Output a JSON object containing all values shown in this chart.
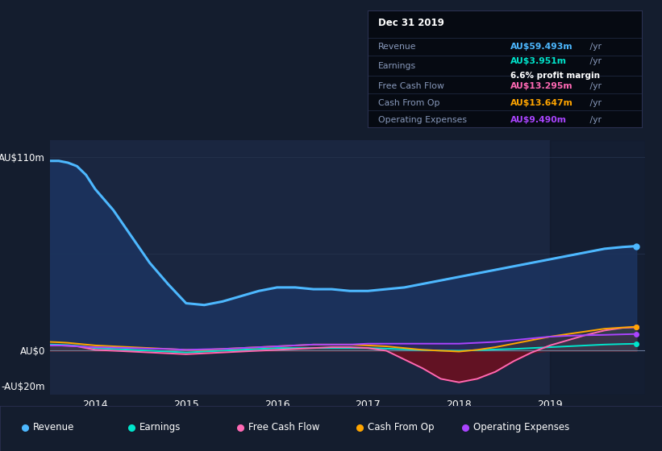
{
  "bg_color": "#141d2e",
  "plot_bg_color": "#1a2640",
  "grid_color": "#263550",
  "title": "Dec 31 2019",
  "info_box": {
    "Revenue": {
      "color": "#4db8ff"
    },
    "Earnings": {
      "color": "#00e5cc"
    },
    "Free Cash Flow": {
      "color": "#ff69b4"
    },
    "Cash From Op": {
      "color": "#ffa500"
    },
    "Operating Expenses": {
      "color": "#aa44ff"
    }
  },
  "years": [
    2013.5,
    2013.6,
    2013.7,
    2013.8,
    2013.9,
    2014.0,
    2014.2,
    2014.4,
    2014.6,
    2014.8,
    2015.0,
    2015.2,
    2015.4,
    2015.6,
    2015.8,
    2016.0,
    2016.2,
    2016.4,
    2016.6,
    2016.8,
    2017.0,
    2017.2,
    2017.4,
    2017.6,
    2017.8,
    2018.0,
    2018.2,
    2018.4,
    2018.6,
    2018.8,
    2019.0,
    2019.2,
    2019.4,
    2019.6,
    2019.8,
    2019.95
  ],
  "revenue": [
    108,
    108,
    107,
    105,
    100,
    92,
    80,
    65,
    50,
    38,
    27,
    26,
    28,
    31,
    34,
    36,
    36,
    35,
    35,
    34,
    34,
    35,
    36,
    38,
    40,
    42,
    44,
    46,
    48,
    50,
    52,
    54,
    56,
    58,
    59,
    59.5
  ],
  "earnings": [
    3.5,
    3.4,
    3.2,
    2.8,
    2.2,
    1.5,
    1.0,
    0.5,
    0.0,
    -0.5,
    -1.0,
    -0.5,
    0.0,
    0.5,
    1.0,
    1.5,
    1.5,
    1.5,
    1.5,
    1.5,
    1.5,
    1.2,
    0.8,
    0.4,
    0.1,
    0.0,
    0.3,
    0.7,
    1.0,
    1.5,
    2.0,
    2.5,
    3.0,
    3.5,
    3.8,
    3.951
  ],
  "free_cash_flow": [
    3.0,
    3.0,
    2.8,
    2.5,
    1.5,
    0.5,
    0.0,
    -0.5,
    -1.0,
    -1.5,
    -2.0,
    -1.5,
    -1.0,
    -0.5,
    0.0,
    0.5,
    1.0,
    1.5,
    2.0,
    2.0,
    1.5,
    0.0,
    -5.0,
    -10.0,
    -16.0,
    -18.0,
    -16.0,
    -12.0,
    -6.0,
    -1.0,
    3.0,
    6.0,
    9.0,
    11.5,
    13.0,
    13.295
  ],
  "cash_from_op": [
    5.0,
    4.8,
    4.5,
    4.0,
    3.5,
    3.0,
    2.5,
    2.0,
    1.5,
    1.0,
    0.5,
    0.5,
    1.0,
    1.5,
    2.0,
    2.5,
    3.0,
    3.5,
    3.5,
    3.5,
    3.0,
    2.5,
    1.5,
    0.5,
    0.0,
    -0.5,
    0.5,
    2.0,
    4.0,
    6.0,
    8.0,
    9.5,
    11.0,
    12.5,
    13.2,
    13.647
  ],
  "operating_expenses": [
    3.0,
    3.0,
    2.8,
    2.5,
    2.2,
    2.0,
    1.8,
    1.5,
    1.2,
    1.0,
    0.5,
    0.8,
    1.0,
    1.5,
    2.0,
    2.5,
    3.0,
    3.5,
    3.5,
    3.5,
    4.0,
    4.0,
    4.0,
    4.0,
    4.0,
    4.0,
    4.5,
    5.0,
    6.0,
    7.0,
    8.0,
    8.5,
    8.8,
    9.0,
    9.3,
    9.49
  ],
  "revenue_color": "#4db8ff",
  "earnings_color": "#00e5cc",
  "free_cash_flow_color": "#ff69b4",
  "cash_from_op_color": "#ffa500",
  "operating_expenses_color": "#aa44ff",
  "ylim": [
    -25,
    120
  ],
  "xlim_left": 2013.5,
  "xlim_right": 2020.05,
  "xlabel_ticks": [
    2014,
    2015,
    2016,
    2017,
    2018,
    2019
  ],
  "highlight_x_start": 2019.0
}
